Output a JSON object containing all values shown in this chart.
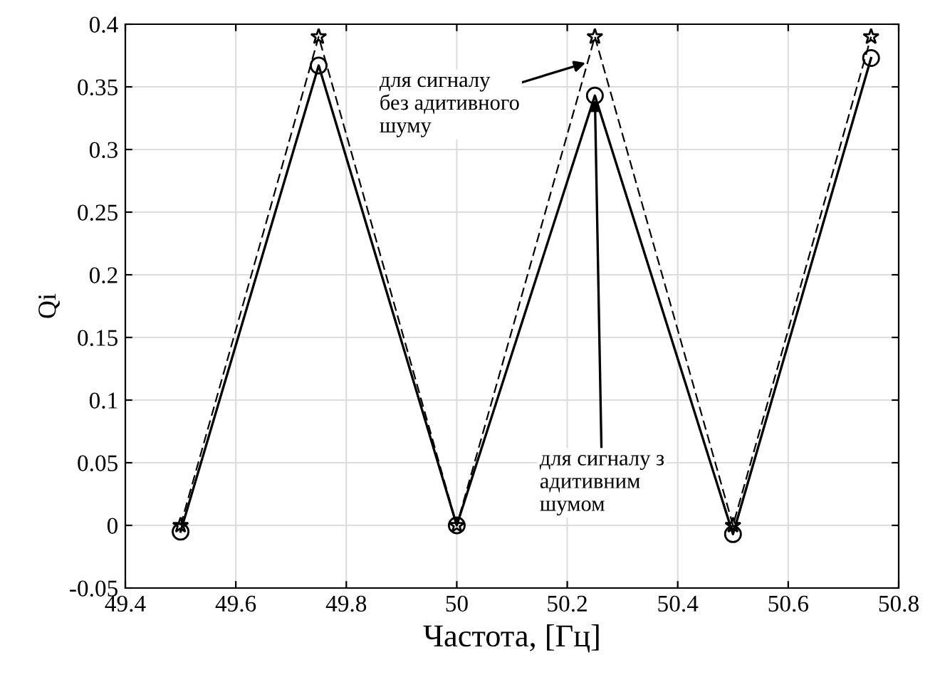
{
  "chart_data": {
    "type": "line",
    "xlabel": "Частота, [Гц]",
    "ylabel": "Qi",
    "x": [
      49.5,
      49.75,
      50,
      50.25,
      50.5,
      50.75
    ],
    "series": [
      {
        "color": "#000000",
        "marker": "star",
        "line_style": "dashed",
        "values": [
          0,
          0.39,
          0,
          0.39,
          0,
          0.39
        ]
      },
      {
        "color": "#000000",
        "marker": "circle",
        "line_style": "solid",
        "values": [
          -0.005,
          0.367,
          0,
          0.343,
          -0.007,
          0.373
        ]
      }
    ],
    "xlim": [
      49.4,
      50.8
    ],
    "xticks": [
      49.4,
      49.6,
      49.8,
      50,
      50.2,
      50.4,
      50.6,
      50.8
    ],
    "ylim": [
      -0.05,
      0.4
    ],
    "yticks": [
      -0.05,
      0,
      0.05,
      0.1,
      0.15,
      0.2,
      0.25,
      0.3,
      0.35,
      0.4
    ],
    "grid": true,
    "annotations": [
      {
        "text": "для сигналу\nбез адитивного\nшуму",
        "x": 50.24,
        "y": 0.37
      },
      {
        "text": "для сигналу з\nадитивним\nшумом",
        "x": 50.25,
        "y": 0.343
      }
    ]
  }
}
